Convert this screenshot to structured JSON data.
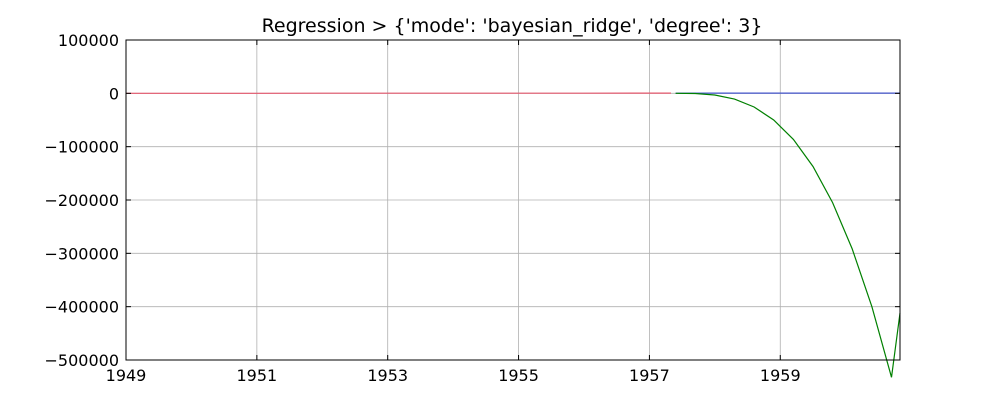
{
  "chart_data": {
    "type": "line",
    "title": "Regression > {'mode': 'bayesian_ridge', 'degree': 3}",
    "xlabel": "",
    "ylabel": "",
    "xlim": [
      1949,
      1960.83
    ],
    "ylim": [
      -500000,
      100000
    ],
    "grid": true,
    "x_ticks": [
      1949,
      1951,
      1953,
      1955,
      1957,
      1959
    ],
    "x_tick_labels": [
      "1949",
      "1951",
      "1953",
      "1955",
      "1957",
      "1959"
    ],
    "y_ticks": [
      100000,
      0,
      -100000,
      -200000,
      -300000,
      -400000,
      -500000
    ],
    "y_tick_labels": [
      "100000",
      "0",
      "−100000",
      "−200000",
      "−300000",
      "−400000",
      "−500000"
    ],
    "series": [
      {
        "color": "#e5586e",
        "x": [
          1949.0,
          1950.0,
          1951.0,
          1952.0,
          1953.0,
          1954.0,
          1955.0,
          1956.0,
          1957.0,
          1957.33
        ],
        "y": [
          112,
          126,
          145,
          171,
          196,
          237,
          284,
          328,
          356,
          400
        ]
      },
      {
        "color": "#4455cc",
        "x": [
          1957.4,
          1958.0,
          1958.5,
          1959.0,
          1959.5,
          1960.0,
          1960.5,
          1960.83
        ],
        "y": [
          340,
          381,
          400,
          360,
          405,
          417,
          461,
          432
        ]
      },
      {
        "color": "#008000",
        "x": [
          1957.4,
          1957.7,
          1958.0,
          1958.3,
          1958.6,
          1958.9,
          1959.2,
          1959.5,
          1959.8,
          1960.1,
          1960.4,
          1960.7,
          1960.83
        ],
        "y": [
          0,
          -400,
          -3200,
          -10800,
          -25600,
          -50000,
          -86400,
          -137200,
          -204800,
          -291600,
          -400000,
          -532400,
          -412000
        ]
      }
    ]
  }
}
